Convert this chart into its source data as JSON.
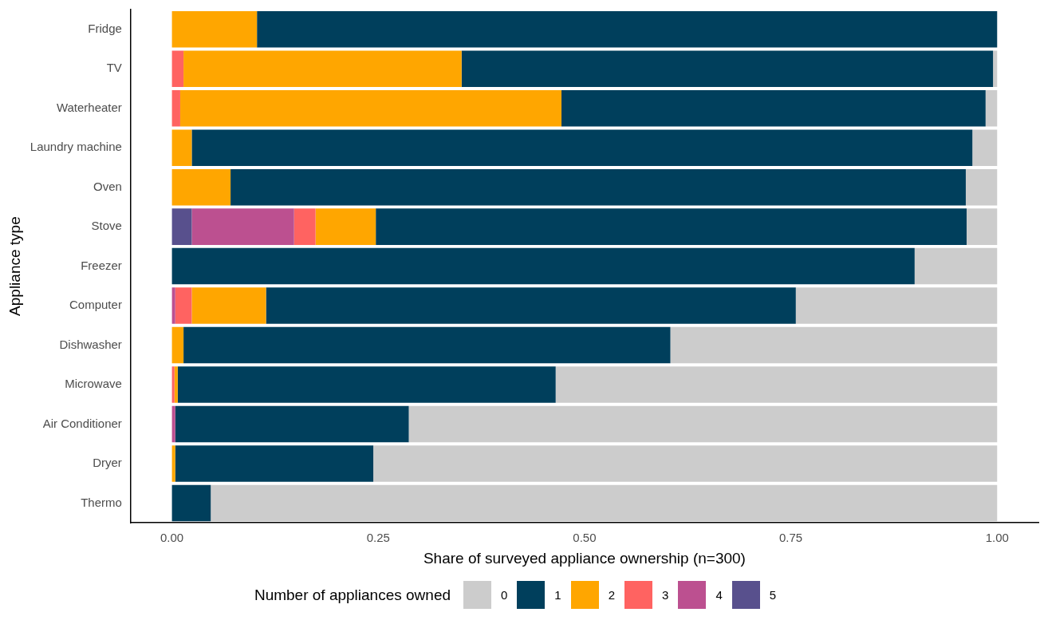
{
  "chart_data": {
    "type": "bar",
    "orientation": "horizontal",
    "stacked": true,
    "xlabel": "Share of surveyed appliance ownership (n=300)",
    "ylabel": "Appliance type",
    "legend_title": "Number of appliances owned",
    "legend": "bottom",
    "grid": false,
    "categories": [
      "Fridge",
      "TV",
      "Waterheater",
      "Laundry machine",
      "Oven",
      "Stove",
      "Freezer",
      "Computer",
      "Dishwasher",
      "Microwave",
      "Air Conditioner",
      "Dryer",
      "Thermo"
    ],
    "xlim": [
      -0.05,
      1.05
    ],
    "xticks": [
      {
        "value": 0,
        "label": "0.00"
      },
      {
        "value": 0.25,
        "label": "0.25"
      },
      {
        "value": 0.5,
        "label": "0.50"
      },
      {
        "value": 0.75,
        "label": "0.75"
      },
      {
        "value": 1,
        "label": "1.00"
      }
    ],
    "series": [
      {
        "name": "5",
        "color": "#58508d",
        "values": [
          0,
          0,
          0,
          0,
          0,
          0.024,
          0,
          0,
          0,
          0,
          0,
          0,
          0
        ]
      },
      {
        "name": "4",
        "color": "#bc5090",
        "values": [
          0,
          0,
          0,
          0,
          0,
          0.124,
          0,
          0.004,
          0,
          0,
          0.004,
          0,
          0
        ]
      },
      {
        "name": "3",
        "color": "#ff6361",
        "values": [
          0,
          0.014,
          0.01,
          0,
          0,
          0.026,
          0,
          0.02,
          0,
          0.003,
          0,
          0,
          0
        ]
      },
      {
        "name": "2",
        "color": "#ffa600",
        "values": [
          0.103,
          0.337,
          0.462,
          0.024,
          0.071,
          0.073,
          0,
          0.09,
          0.014,
          0.004,
          0,
          0.004,
          0
        ]
      },
      {
        "name": "1",
        "color": "#003f5c",
        "values": [
          0.897,
          0.644,
          0.514,
          0.946,
          0.891,
          0.716,
          0.9,
          0.642,
          0.59,
          0.458,
          0.283,
          0.24,
          0.047
        ]
      },
      {
        "name": "0",
        "color": "#cccccc",
        "values": [
          0,
          0.005,
          0.014,
          0.03,
          0.038,
          0.037,
          0.1,
          0.244,
          0.396,
          0.535,
          0.713,
          0.756,
          0.953
        ]
      }
    ]
  }
}
